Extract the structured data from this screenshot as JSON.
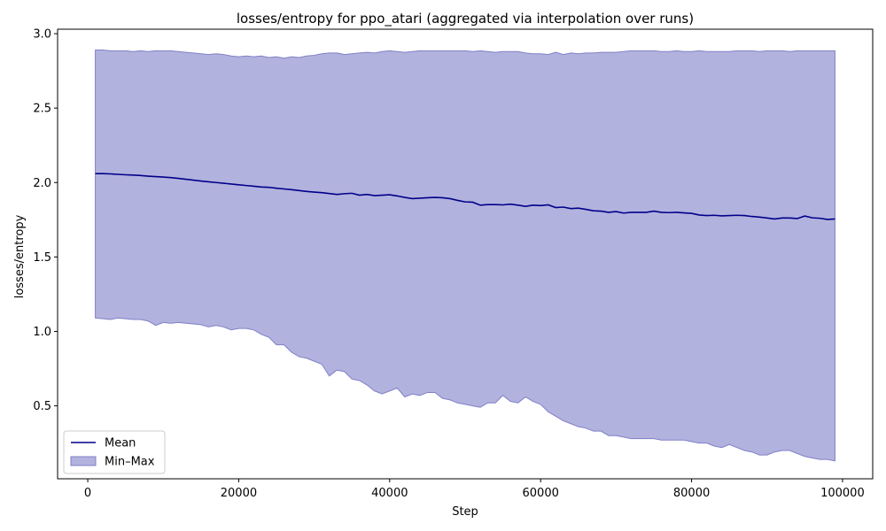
{
  "chart_data": {
    "type": "line",
    "title": "losses/entropy for ppo_atari (aggregated via interpolation over runs)",
    "xlabel": "Step",
    "ylabel": "losses/entropy",
    "xlim": [
      -4000,
      104000
    ],
    "ylim": [
      0.01,
      3.03
    ],
    "x_ticks": [
      0,
      20000,
      40000,
      60000,
      80000,
      100000
    ],
    "x_tick_labels": [
      "0",
      "20000",
      "40000",
      "60000",
      "80000",
      "100000"
    ],
    "y_ticks": [
      0.5,
      1.0,
      1.5,
      2.0,
      2.5,
      3.0
    ],
    "y_tick_labels": [
      "0.5",
      "1.0",
      "1.5",
      "2.0",
      "2.5",
      "3.0"
    ],
    "grid": false,
    "legend_position": "lower-left",
    "colors": {
      "mean": "#00008b",
      "fill": "#b2b2de",
      "fill_edge": "#8080c8"
    },
    "x": [
      1000,
      2000,
      3000,
      4000,
      5000,
      6000,
      7000,
      8000,
      9000,
      10000,
      11000,
      12000,
      13000,
      14000,
      15000,
      16000,
      17000,
      18000,
      19000,
      20000,
      21000,
      22000,
      23000,
      24000,
      25000,
      26000,
      27000,
      28000,
      29000,
      30000,
      31000,
      32000,
      33000,
      34000,
      35000,
      36000,
      37000,
      38000,
      39000,
      40000,
      41000,
      42000,
      43000,
      44000,
      45000,
      46000,
      47000,
      48000,
      49000,
      50000,
      51000,
      52000,
      53000,
      54000,
      55000,
      56000,
      57000,
      58000,
      59000,
      60000,
      61000,
      62000,
      63000,
      64000,
      65000,
      66000,
      67000,
      68000,
      69000,
      70000,
      71000,
      72000,
      73000,
      74000,
      75000,
      76000,
      77000,
      78000,
      79000,
      80000,
      81000,
      82000,
      83000,
      84000,
      85000,
      86000,
      87000,
      88000,
      89000,
      90000,
      91000,
      92000,
      93000,
      94000,
      95000,
      96000,
      97000,
      98000,
      99000
    ],
    "series": [
      {
        "name": "Mean",
        "values": [
          2.06,
          2.06,
          2.058,
          2.055,
          2.052,
          2.05,
          2.047,
          2.043,
          2.04,
          2.037,
          2.033,
          2.028,
          2.022,
          2.016,
          2.01,
          2.005,
          2.0,
          1.995,
          1.99,
          1.985,
          1.98,
          1.975,
          1.97,
          1.968,
          1.962,
          1.957,
          1.952,
          1.946,
          1.94,
          1.936,
          1.932,
          1.926,
          1.92,
          1.925,
          1.928,
          1.915,
          1.92,
          1.912,
          1.915,
          1.918,
          1.91,
          1.9,
          1.892,
          1.895,
          1.898,
          1.9,
          1.898,
          1.892,
          1.88,
          1.87,
          1.868,
          1.848,
          1.852,
          1.852,
          1.85,
          1.855,
          1.848,
          1.84,
          1.848,
          1.845,
          1.85,
          1.832,
          1.835,
          1.825,
          1.828,
          1.82,
          1.81,
          1.808,
          1.8,
          1.805,
          1.795,
          1.8,
          1.8,
          1.8,
          1.808,
          1.8,
          1.798,
          1.8,
          1.796,
          1.793,
          1.782,
          1.778,
          1.78,
          1.776,
          1.778,
          1.78,
          1.778,
          1.772,
          1.768,
          1.762,
          1.755,
          1.762,
          1.762,
          1.758,
          1.775,
          1.763,
          1.76,
          1.752,
          1.755
        ]
      },
      {
        "name": "Min–Max",
        "min": [
          1.09,
          1.085,
          1.08,
          1.09,
          1.085,
          1.08,
          1.08,
          1.07,
          1.04,
          1.06,
          1.055,
          1.06,
          1.055,
          1.05,
          1.045,
          1.03,
          1.04,
          1.03,
          1.01,
          1.02,
          1.02,
          1.01,
          0.98,
          0.96,
          0.91,
          0.91,
          0.86,
          0.83,
          0.82,
          0.8,
          0.78,
          0.7,
          0.74,
          0.73,
          0.68,
          0.67,
          0.64,
          0.6,
          0.58,
          0.6,
          0.62,
          0.56,
          0.58,
          0.57,
          0.59,
          0.59,
          0.55,
          0.54,
          0.52,
          0.51,
          0.5,
          0.49,
          0.52,
          0.52,
          0.57,
          0.53,
          0.52,
          0.56,
          0.53,
          0.51,
          0.46,
          0.43,
          0.4,
          0.38,
          0.36,
          0.35,
          0.33,
          0.33,
          0.3,
          0.3,
          0.29,
          0.28,
          0.28,
          0.28,
          0.28,
          0.27,
          0.27,
          0.27,
          0.27,
          0.26,
          0.25,
          0.25,
          0.23,
          0.22,
          0.24,
          0.22,
          0.2,
          0.19,
          0.17,
          0.17,
          0.19,
          0.2,
          0.2,
          0.18,
          0.16,
          0.15,
          0.14,
          0.14,
          0.13
        ],
        "max": [
          2.89,
          2.89,
          2.885,
          2.885,
          2.885,
          2.88,
          2.885,
          2.88,
          2.885,
          2.885,
          2.885,
          2.88,
          2.875,
          2.87,
          2.865,
          2.86,
          2.865,
          2.86,
          2.85,
          2.845,
          2.85,
          2.845,
          2.85,
          2.84,
          2.845,
          2.835,
          2.845,
          2.84,
          2.85,
          2.855,
          2.865,
          2.87,
          2.87,
          2.86,
          2.865,
          2.87,
          2.875,
          2.87,
          2.88,
          2.885,
          2.88,
          2.875,
          2.88,
          2.885,
          2.885,
          2.885,
          2.885,
          2.885,
          2.885,
          2.885,
          2.88,
          2.885,
          2.88,
          2.875,
          2.88,
          2.88,
          2.88,
          2.87,
          2.865,
          2.865,
          2.86,
          2.875,
          2.86,
          2.87,
          2.865,
          2.87,
          2.87,
          2.875,
          2.875,
          2.875,
          2.88,
          2.885,
          2.885,
          2.885,
          2.885,
          2.88,
          2.88,
          2.885,
          2.88,
          2.88,
          2.885,
          2.88,
          2.88,
          2.88,
          2.88,
          2.885,
          2.885,
          2.885,
          2.88,
          2.885,
          2.885,
          2.885,
          2.88,
          2.885,
          2.885,
          2.885,
          2.885,
          2.885,
          2.885
        ]
      }
    ]
  }
}
